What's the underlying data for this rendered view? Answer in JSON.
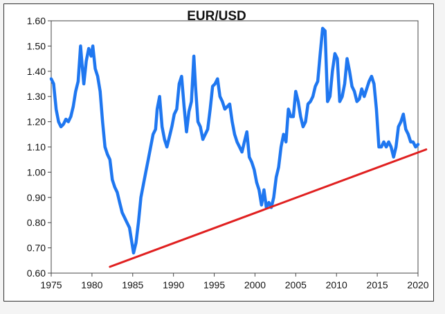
{
  "chart_data": {
    "type": "line",
    "title": "EUR/USD",
    "xlabel": "",
    "ylabel": "",
    "xlim": [
      1975,
      2020
    ],
    "ylim": [
      0.6,
      1.6
    ],
    "x_ticks": [
      1975,
      1980,
      1985,
      1990,
      1995,
      2000,
      2005,
      2010,
      2015,
      2020
    ],
    "x_tick_labels": [
      "1975",
      "1980",
      "1985",
      "1990",
      "1995",
      "2000",
      "2005",
      "2010",
      "2015",
      "2020"
    ],
    "y_ticks": [
      0.6,
      0.7,
      0.8,
      0.9,
      1.0,
      1.1,
      1.2,
      1.3,
      1.4,
      1.5,
      1.6
    ],
    "y_tick_labels": [
      "0.60",
      "0.70",
      "0.80",
      "0.90",
      "1.00",
      "1.10",
      "1.20",
      "1.30",
      "1.40",
      "1.50",
      "1.60"
    ],
    "grid": false,
    "series": [
      {
        "color": "#1f77f0",
        "x": [
          1975.0,
          1975.3,
          1975.6,
          1975.9,
          1976.2,
          1976.5,
          1976.8,
          1977.1,
          1977.4,
          1977.7,
          1978.0,
          1978.3,
          1978.6,
          1978.8,
          1979.0,
          1979.3,
          1979.6,
          1979.9,
          1980.1,
          1980.4,
          1980.7,
          1981.0,
          1981.3,
          1981.6,
          1981.9,
          1982.2,
          1982.5,
          1982.8,
          1983.1,
          1983.4,
          1983.7,
          1984.0,
          1984.3,
          1984.6,
          1984.9,
          1985.1,
          1985.4,
          1985.7,
          1986.0,
          1986.3,
          1986.6,
          1986.9,
          1987.2,
          1987.5,
          1987.8,
          1988.0,
          1988.3,
          1988.6,
          1988.9,
          1989.2,
          1989.5,
          1989.8,
          1990.1,
          1990.4,
          1990.7,
          1991.0,
          1991.3,
          1991.6,
          1991.9,
          1992.2,
          1992.5,
          1992.7,
          1993.0,
          1993.3,
          1993.6,
          1993.9,
          1994.2,
          1994.5,
          1994.8,
          1995.1,
          1995.4,
          1995.7,
          1996.0,
          1996.3,
          1996.6,
          1996.9,
          1997.2,
          1997.5,
          1997.8,
          1998.1,
          1998.4,
          1998.7,
          1999.0,
          1999.3,
          1999.6,
          1999.9,
          2000.2,
          2000.5,
          2000.8,
          2001.1,
          2001.4,
          2001.7,
          2002.0,
          2002.3,
          2002.6,
          2002.9,
          2003.2,
          2003.5,
          2003.8,
          2004.1,
          2004.4,
          2004.7,
          2005.0,
          2005.3,
          2005.6,
          2005.9,
          2006.2,
          2006.5,
          2006.8,
          2007.1,
          2007.4,
          2007.7,
          2008.0,
          2008.3,
          2008.6,
          2008.9,
          2009.2,
          2009.5,
          2009.8,
          2010.1,
          2010.4,
          2010.7,
          2011.0,
          2011.3,
          2011.6,
          2011.9,
          2012.2,
          2012.5,
          2012.8,
          2013.1,
          2013.4,
          2013.7,
          2014.0,
          2014.3,
          2014.6,
          2014.9,
          2015.2,
          2015.5,
          2015.8,
          2016.1,
          2016.4,
          2016.7,
          2017.0,
          2017.3,
          2017.6,
          2017.9,
          2018.2,
          2018.5,
          2018.8,
          2019.1,
          2019.4,
          2019.7,
          2020.0
        ],
        "y": [
          1.37,
          1.35,
          1.25,
          1.2,
          1.18,
          1.19,
          1.21,
          1.2,
          1.22,
          1.26,
          1.32,
          1.36,
          1.5,
          1.42,
          1.35,
          1.44,
          1.49,
          1.46,
          1.5,
          1.41,
          1.38,
          1.32,
          1.2,
          1.1,
          1.07,
          1.05,
          0.97,
          0.94,
          0.92,
          0.88,
          0.84,
          0.82,
          0.8,
          0.78,
          0.72,
          0.68,
          0.72,
          0.8,
          0.9,
          0.95,
          1.0,
          1.05,
          1.1,
          1.15,
          1.17,
          1.25,
          1.3,
          1.18,
          1.13,
          1.1,
          1.14,
          1.18,
          1.23,
          1.25,
          1.35,
          1.38,
          1.26,
          1.16,
          1.24,
          1.28,
          1.46,
          1.34,
          1.2,
          1.18,
          1.13,
          1.15,
          1.17,
          1.25,
          1.34,
          1.35,
          1.37,
          1.3,
          1.28,
          1.25,
          1.26,
          1.27,
          1.2,
          1.15,
          1.12,
          1.1,
          1.08,
          1.12,
          1.16,
          1.06,
          1.04,
          1.01,
          0.96,
          0.93,
          0.87,
          0.93,
          0.86,
          0.88,
          0.86,
          0.9,
          0.98,
          1.02,
          1.1,
          1.15,
          1.12,
          1.25,
          1.22,
          1.22,
          1.32,
          1.28,
          1.22,
          1.18,
          1.2,
          1.27,
          1.28,
          1.3,
          1.34,
          1.36,
          1.47,
          1.57,
          1.56,
          1.28,
          1.3,
          1.4,
          1.47,
          1.45,
          1.28,
          1.3,
          1.35,
          1.45,
          1.4,
          1.34,
          1.32,
          1.28,
          1.29,
          1.33,
          1.3,
          1.33,
          1.36,
          1.38,
          1.35,
          1.25,
          1.1,
          1.1,
          1.12,
          1.1,
          1.12,
          1.1,
          1.06,
          1.1,
          1.18,
          1.2,
          1.23,
          1.17,
          1.15,
          1.12,
          1.12,
          1.1,
          1.11
        ]
      },
      {
        "color": "#e02020",
        "x": [
          1982.2,
          2021.0
        ],
        "y": [
          0.625,
          1.09
        ]
      }
    ]
  }
}
